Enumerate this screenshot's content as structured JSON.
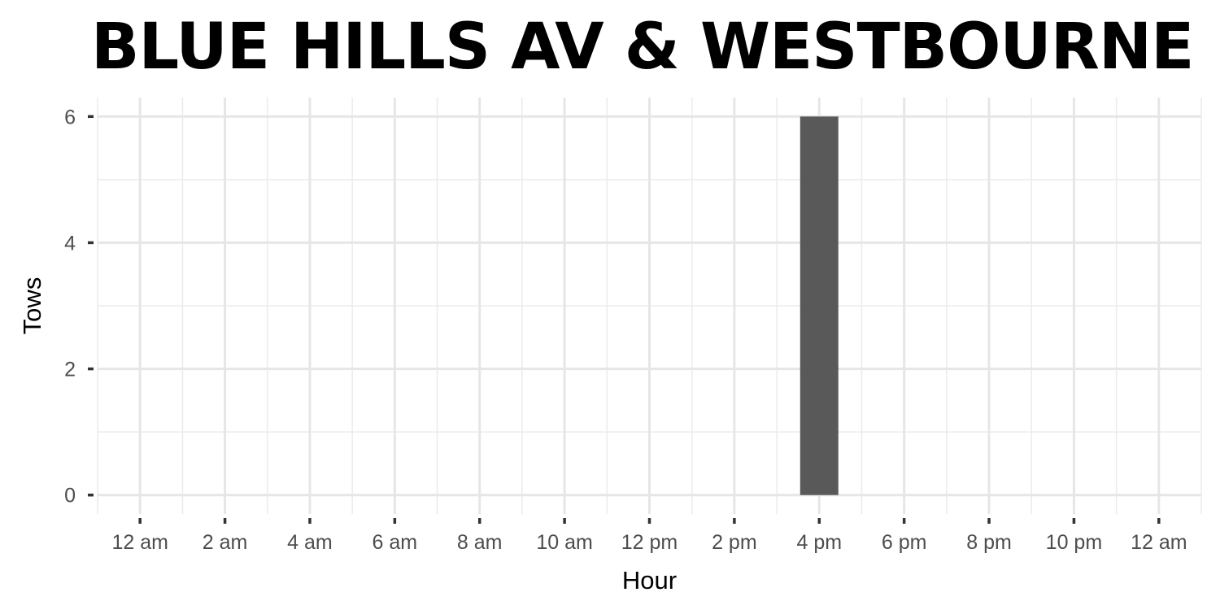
{
  "chart_data": {
    "type": "bar",
    "title": "BLUE HILLS AV & WESTBOURNE",
    "xlabel": "Hour",
    "ylabel": "Tows",
    "x_tick_labels": [
      "12 am",
      "2 am",
      "4 am",
      "6 am",
      "8 am",
      "10 am",
      "12 pm",
      "2 pm",
      "4 pm",
      "6 pm",
      "8 pm",
      "10 pm",
      "12 am"
    ],
    "x_tick_hours": [
      0,
      2,
      4,
      6,
      8,
      10,
      12,
      14,
      16,
      18,
      20,
      22,
      24
    ],
    "y_ticks": [
      0,
      2,
      4,
      6
    ],
    "xlim": [
      -1,
      25
    ],
    "ylim": [
      -0.3,
      6.3
    ],
    "bars": [
      {
        "hour": 16,
        "value": 6
      }
    ],
    "bar_color": "#595959",
    "grid": true,
    "legend": "none"
  }
}
